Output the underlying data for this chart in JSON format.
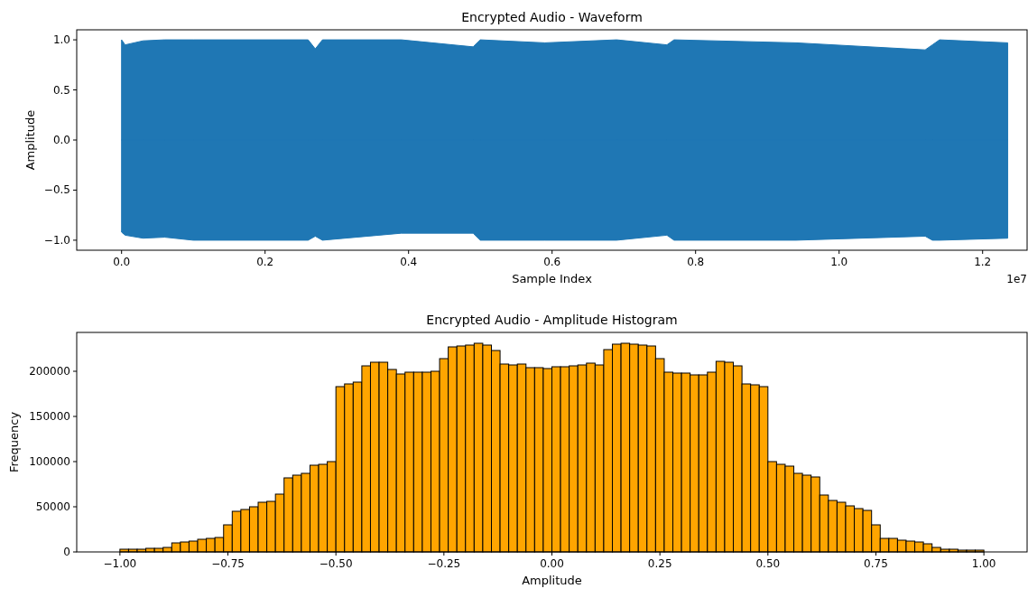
{
  "chart_data": [
    {
      "type": "area",
      "title": "Encrypted Audio - Waveform",
      "xlabel": "Sample Index",
      "ylabel": "Amplitude",
      "annotations": [
        "1e7"
      ],
      "x": [
        0,
        0.005,
        0.03,
        0.06,
        0.1,
        0.26,
        0.27,
        0.28,
        0.39,
        0.49,
        0.5,
        0.59,
        0.69,
        0.76,
        0.77,
        0.94,
        1.12,
        1.13,
        1.14,
        1.235
      ],
      "series": [
        {
          "color": "#1f77b4",
          "values": [
            1.0,
            0.95,
            0.99,
            1.0,
            1.0,
            1.0,
            0.91,
            1.0,
            1.0,
            0.93,
            1.0,
            0.97,
            1.0,
            0.95,
            1.0,
            0.97,
            0.9,
            0.95,
            1.0,
            0.97
          ]
        },
        {
          "color": "#1f77b4",
          "values": [
            -0.92,
            -0.95,
            -0.98,
            -0.97,
            -1.0,
            -1.0,
            -0.96,
            -1.0,
            -0.93,
            -0.93,
            -1.0,
            -1.0,
            -1.0,
            -0.95,
            -1.0,
            -1.0,
            -0.96,
            -1.0,
            -1.0,
            -0.98
          ]
        }
      ],
      "xlim": [
        -0.0625,
        1.262
      ],
      "xticks": [
        {
          "value": 0,
          "label": "0.0"
        },
        0.2,
        0.4,
        0.6,
        0.8,
        {
          "value": 1,
          "label": "1.0"
        },
        1.2
      ],
      "ylim": [
        -1.1,
        1.1
      ],
      "yticks": [
        {
          "value": -1,
          "label": "−1.0"
        },
        {
          "value": -0.5,
          "label": "−0.5"
        },
        {
          "value": 0,
          "label": "0.0"
        },
        {
          "value": 0.5,
          "label": "0.5"
        },
        {
          "value": 1,
          "label": "1.0"
        }
      ]
    },
    {
      "type": "histogram",
      "title": "Encrypted Audio - Amplitude Histogram",
      "xlabel": "Amplitude",
      "ylabel": "Frequency",
      "color": "#ffa500",
      "bins": [
        -1.0,
        -0.98,
        -0.96,
        -0.94,
        -0.92,
        -0.9,
        -0.88,
        -0.86,
        -0.84,
        -0.82,
        -0.8,
        -0.78,
        -0.76,
        -0.74,
        -0.72,
        -0.7,
        -0.68,
        -0.66,
        -0.64,
        -0.62,
        -0.6,
        -0.58,
        -0.56,
        -0.54,
        -0.52,
        -0.5,
        -0.48,
        -0.46,
        -0.44,
        -0.42,
        -0.4,
        -0.38,
        -0.36,
        -0.34,
        -0.32,
        -0.3,
        -0.28,
        -0.26,
        -0.24,
        -0.22,
        -0.2,
        -0.18,
        -0.16,
        -0.14,
        -0.12,
        -0.1,
        -0.08,
        -0.06,
        -0.04,
        -0.02,
        0.0,
        0.02,
        0.04,
        0.06,
        0.08,
        0.1,
        0.12,
        0.14,
        0.16,
        0.18,
        0.2,
        0.22,
        0.24,
        0.26,
        0.28,
        0.3,
        0.32,
        0.34,
        0.36,
        0.38,
        0.4,
        0.42,
        0.44,
        0.46,
        0.48,
        0.5,
        0.52,
        0.54,
        0.56,
        0.58,
        0.6,
        0.62,
        0.64,
        0.66,
        0.68,
        0.7,
        0.72,
        0.74,
        0.76,
        0.78,
        0.8,
        0.82,
        0.84,
        0.86,
        0.88,
        0.9,
        0.92,
        0.94,
        0.96,
        0.98,
        1.0
      ],
      "values": [
        3000,
        3000,
        3000,
        4000,
        4000,
        5000,
        10000,
        11000,
        12000,
        14000,
        15000,
        16000,
        30000,
        45000,
        47000,
        50000,
        55000,
        56000,
        64000,
        82000,
        85000,
        87000,
        96000,
        97000,
        100000,
        183000,
        186000,
        188000,
        206000,
        210000,
        210000,
        202000,
        197000,
        199000,
        199000,
        199000,
        200000,
        214000,
        227000,
        228000,
        229000,
        231000,
        229000,
        223000,
        208000,
        207000,
        208000,
        204000,
        204000,
        203000,
        205000,
        205000,
        206000,
        207000,
        209000,
        207000,
        224000,
        230000,
        231000,
        230000,
        229000,
        228000,
        214000,
        199000,
        198000,
        198000,
        196000,
        196000,
        199000,
        211000,
        210000,
        206000,
        186000,
        185000,
        183000,
        100000,
        97000,
        95000,
        87000,
        85000,
        83000,
        63000,
        57000,
        55000,
        51000,
        48000,
        46000,
        30000,
        15000,
        15000,
        13000,
        12000,
        11000,
        9000,
        5000,
        3000,
        3000,
        2000,
        2000,
        2000
      ],
      "xlim": [
        -1.1,
        1.1
      ],
      "xticks": [
        {
          "value": -1,
          "label": "−1.00"
        },
        {
          "value": -0.75,
          "label": "−0.75"
        },
        {
          "value": -0.5,
          "label": "−0.50"
        },
        {
          "value": -0.25,
          "label": "−0.25"
        },
        {
          "value": 0,
          "label": "0.00"
        },
        {
          "value": 0.25,
          "label": "0.25"
        },
        {
          "value": 0.5,
          "label": "0.50"
        },
        {
          "value": 0.75,
          "label": "0.75"
        },
        {
          "value": 1,
          "label": "1.00"
        }
      ],
      "ylim": [
        0,
        243000
      ],
      "yticks": [
        0,
        50000,
        100000,
        150000,
        200000
      ]
    }
  ]
}
